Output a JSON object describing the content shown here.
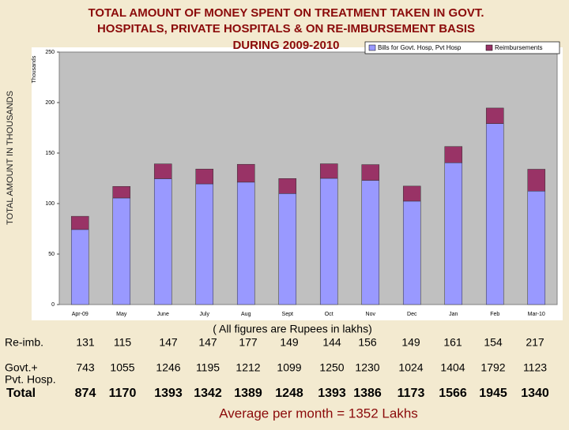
{
  "chart_data": {
    "type": "stacked-bar",
    "title": [
      "TOTAL AMOUNT OF MONEY SPENT ON TREATMENT TAKEN IN GOVT.",
      "HOSPITALS, PRIVATE HOSPITALS & ON RE-IMBURSEMENT BASIS",
      "DURING 2009-2010"
    ],
    "y_label": "TOTAL AMOUNT IN THOUSANDS",
    "y_unit_label": "Thousands",
    "categories": [
      "Apr-09",
      "May",
      "June",
      "July",
      "Aug",
      "Sept",
      "Oct",
      "Nov",
      "Dec",
      "Jan",
      "Feb",
      "Mar-10"
    ],
    "series": [
      {
        "name": "Bills for Govt. Hosp, Pvt Hosp",
        "color": "#9999ff",
        "values": [
          74.3,
          105.5,
          124.6,
          119.5,
          121.2,
          109.9,
          125.0,
          123.0,
          102.4,
          140.4,
          179.2,
          112.3
        ]
      },
      {
        "name": "Reimbursements",
        "color": "#993366",
        "values": [
          13.1,
          11.5,
          14.7,
          14.7,
          17.7,
          14.9,
          14.4,
          15.6,
          14.9,
          16.1,
          15.4,
          21.7
        ]
      }
    ],
    "ylim": [
      0,
      250
    ],
    "yticks": [
      0,
      50,
      100,
      150,
      200,
      250
    ],
    "legend": "top-right"
  },
  "table": {
    "note": "( All figures are Rupees in lakhs)",
    "rows": [
      {
        "label": [
          "Re-imb."
        ],
        "values": [
          131,
          115,
          147,
          147,
          177,
          149,
          144,
          156,
          149,
          161,
          154,
          217
        ]
      },
      {
        "label": [
          "Govt.+",
          "Pvt. Hosp."
        ],
        "values": [
          743,
          1055,
          1246,
          1195,
          1212,
          1099,
          1250,
          1230,
          1024,
          1404,
          1792,
          1123
        ]
      },
      {
        "label": [
          "Total"
        ],
        "values": [
          874,
          1170,
          1393,
          1342,
          1389,
          1248,
          1393,
          1386,
          1173,
          1566,
          1945,
          1340
        ]
      }
    ],
    "footer": "Average per month  =  1352 Lakhs"
  }
}
